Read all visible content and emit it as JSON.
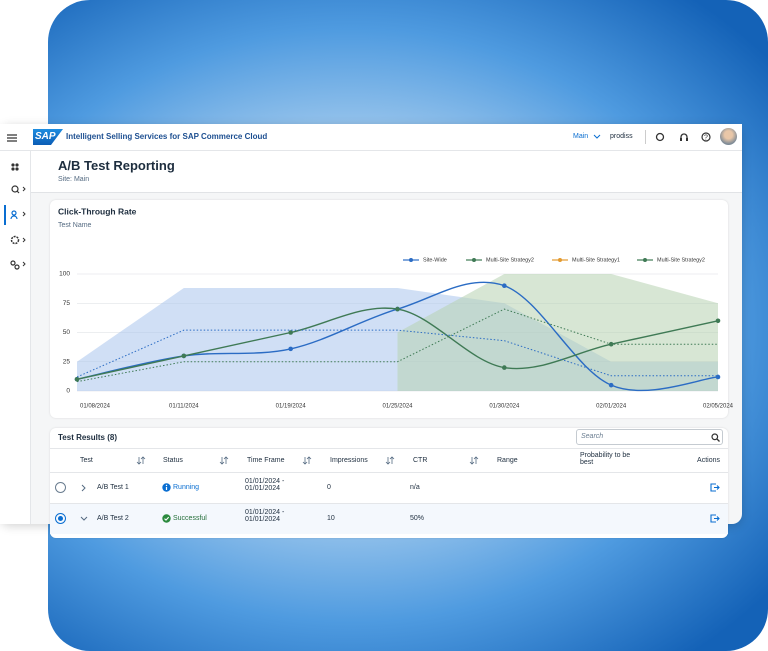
{
  "header": {
    "logo": "SAP",
    "product": "Intelligent Selling Services for SAP Commerce Cloud",
    "site_select": "Main",
    "user": "prodiss"
  },
  "page": {
    "title": "A/B Test Reporting",
    "subtitle": "Site: Main"
  },
  "chart_data": {
    "type": "line",
    "title": "Click-Through Rate",
    "subtitle": "Test Name",
    "categories": [
      "01/08/2024",
      "01/11/2024",
      "01/19/2024",
      "01/25/2024",
      "01/30/2024",
      "02/01/2024",
      "02/05/2024"
    ],
    "ylim": [
      0,
      100
    ],
    "yticks": [
      0,
      25,
      50,
      75,
      100
    ],
    "grid": true,
    "legend": "top-right",
    "areas": [
      {
        "color": "#a9c4ec",
        "values": [
          25,
          88,
          88,
          88,
          75,
          25,
          25
        ]
      },
      {
        "color": "#b7d2b0",
        "values": [
          null,
          null,
          null,
          50,
          100,
          100,
          75
        ]
      }
    ],
    "series": [
      {
        "name": "Site-Wide",
        "color": "#2b6cc4",
        "smooth": true,
        "markers": true,
        "values": [
          10,
          30,
          36,
          70,
          90,
          5,
          12
        ]
      },
      {
        "name": "Multi-Site Strategy2",
        "color": "#3f7a55",
        "smooth": true,
        "markers": true,
        "values": [
          10,
          30,
          50,
          70,
          20,
          40,
          60
        ]
      },
      {
        "name": "Multi-Site Strategy1",
        "color": "#e39a2f",
        "line_color": "#2b6cc4",
        "dashed": true,
        "values": [
          12,
          52,
          52,
          52,
          43,
          13,
          13
        ]
      },
      {
        "name": "Multi-Site Strategy2",
        "color": "#3f7a55",
        "dashed": true,
        "values": [
          8,
          25,
          25,
          25,
          70,
          40,
          40
        ]
      }
    ]
  },
  "table": {
    "title": "Test Results (8)",
    "search_placeholder": "Search",
    "columns": [
      "Test",
      "Status",
      "Time Frame",
      "Impressions",
      "CTR",
      "Range",
      "Probability to be best",
      "Actions"
    ],
    "rows": [
      [
        "A/B Test 1",
        "Running",
        "01/01/2024 - 01/01/2024",
        "0",
        "n/a"
      ],
      [
        "A/B Test 2",
        "Successful",
        "01/01/2024 - 01/01/2024",
        "10",
        "50%"
      ]
    ]
  }
}
